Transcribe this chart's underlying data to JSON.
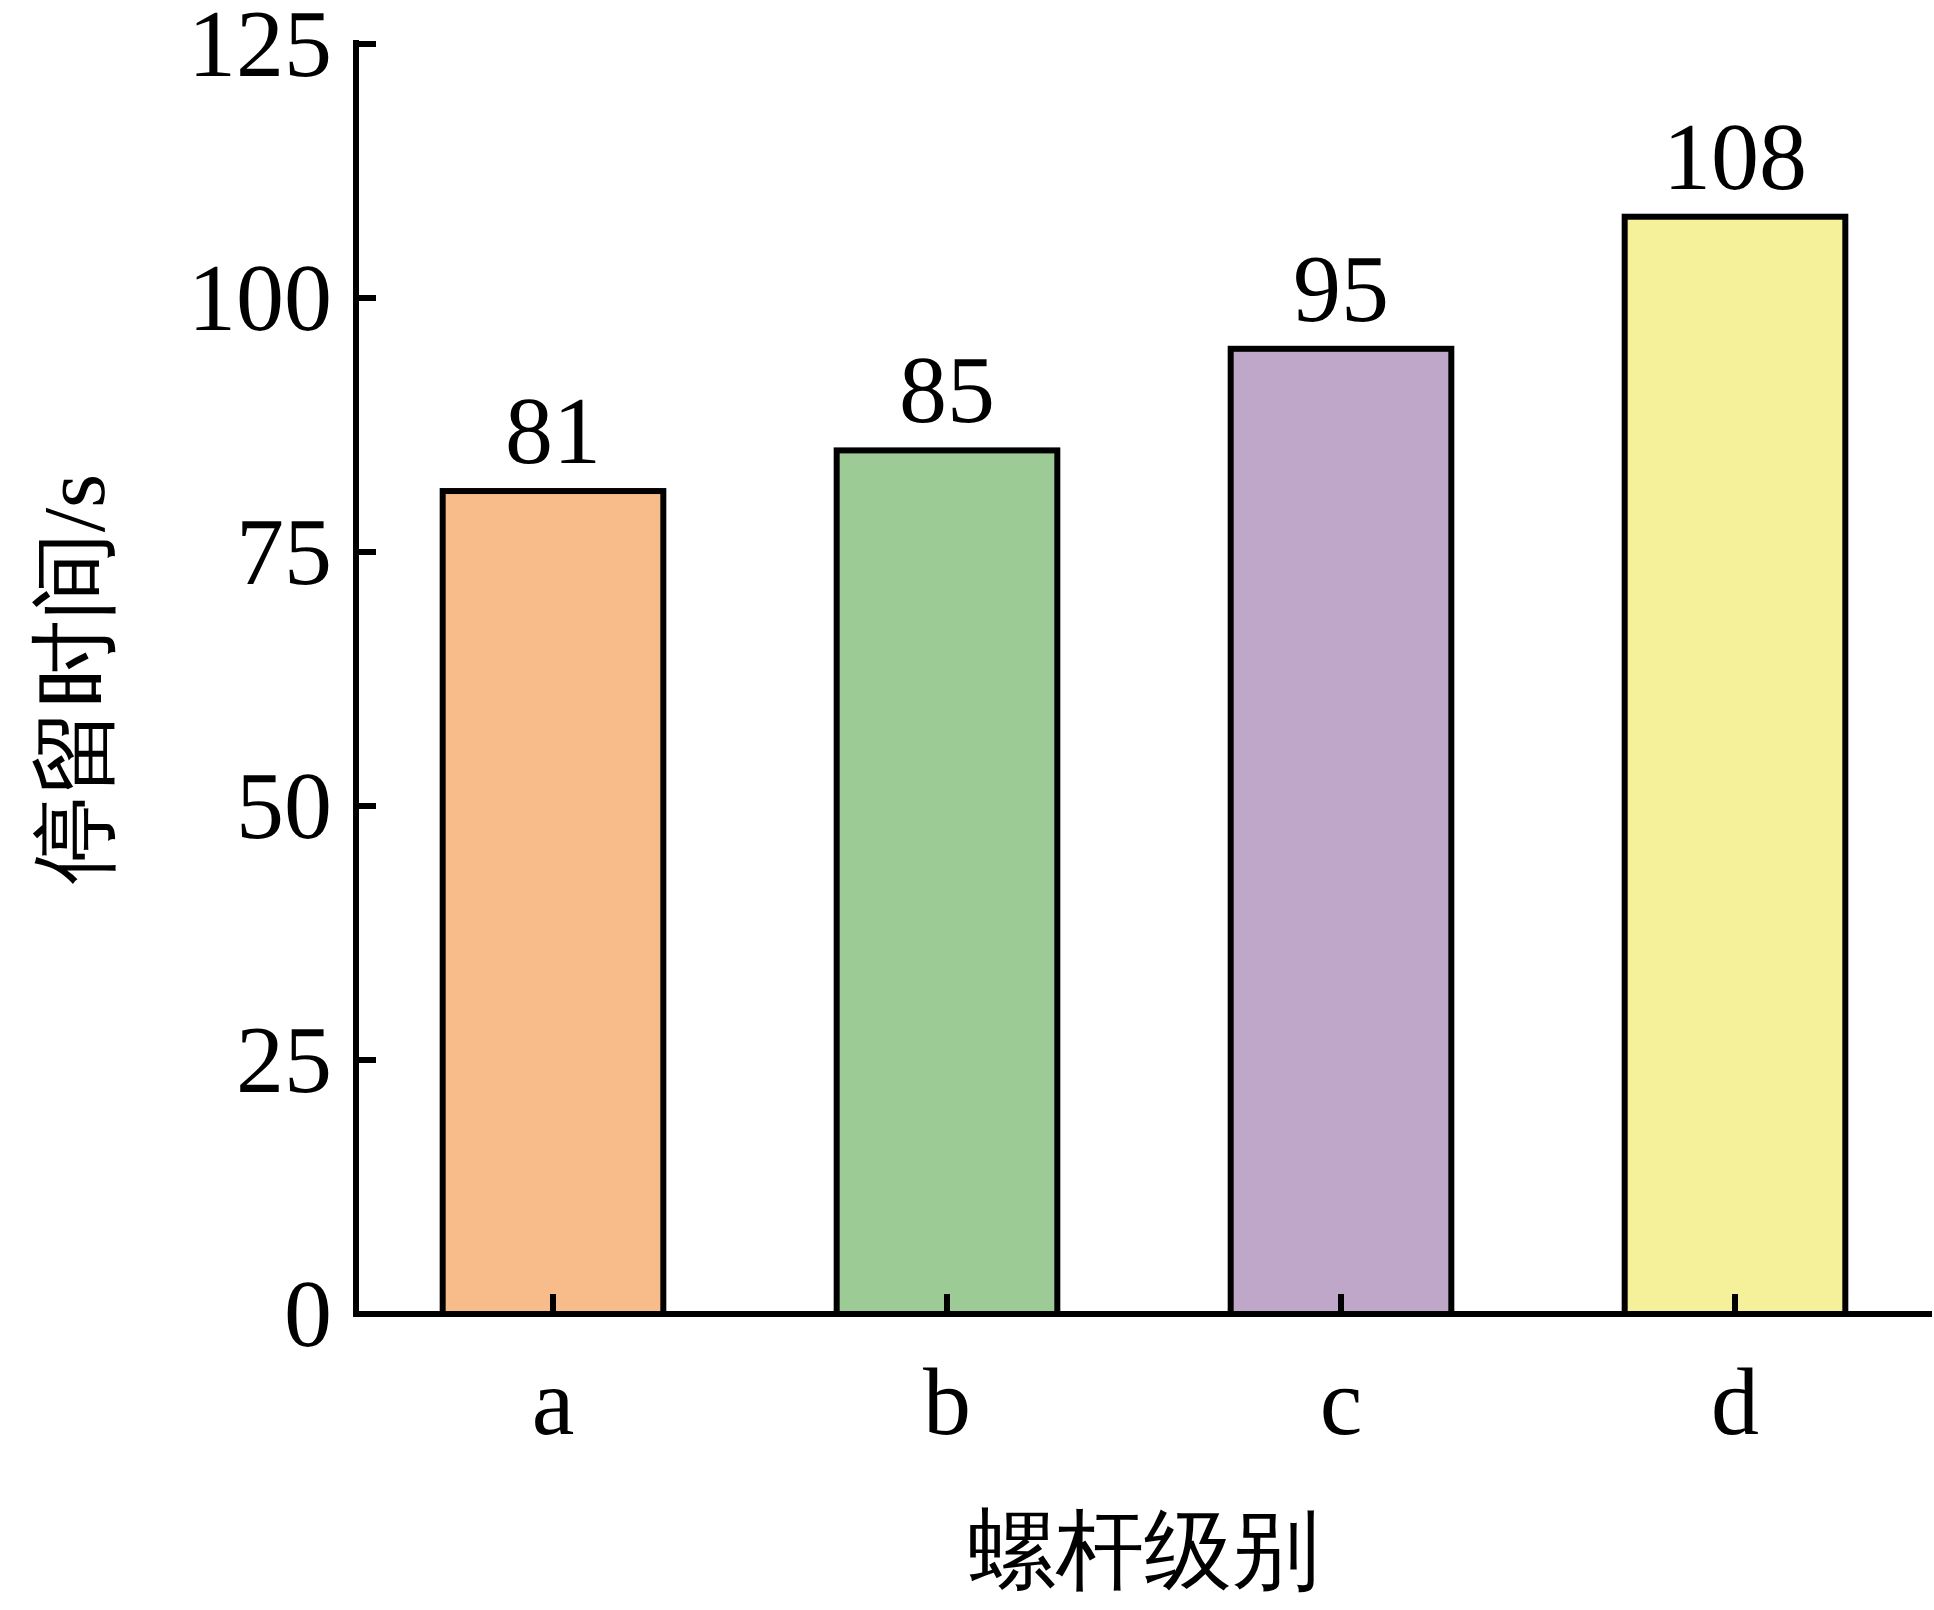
{
  "chart_data": {
    "type": "bar",
    "xlabel": "螺杆级别",
    "ylabel": "停留时间/s",
    "categories": [
      "a",
      "b",
      "c",
      "d"
    ],
    "values": [
      81,
      85,
      95,
      108
    ],
    "colors": [
      "#f8bc8a",
      "#9dcb95",
      "#bfa7ca",
      "#f5f19a"
    ],
    "ylim": [
      0,
      125
    ],
    "yticks": [
      0,
      25,
      50,
      75,
      100,
      125
    ],
    "data_labels": true
  }
}
